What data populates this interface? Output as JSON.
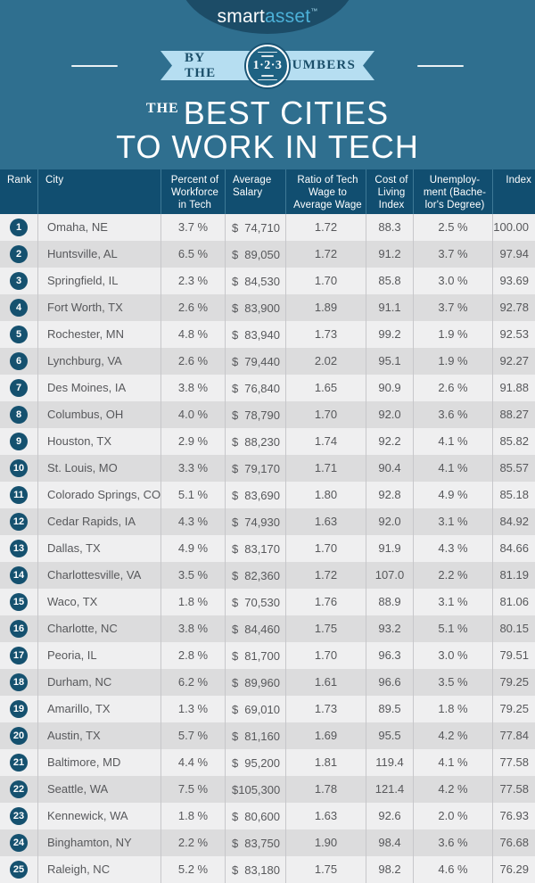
{
  "brand": {
    "smart": "smart",
    "asset": "asset",
    "trademark": "™"
  },
  "banner": {
    "left": "BY THE",
    "right": "NUMBERS",
    "circle": "1·2·3"
  },
  "title": {
    "the": "THE",
    "line1": "BEST CITIES",
    "line2": "TO WORK IN TECH"
  },
  "colors": {
    "background": "#2f6f8f",
    "logo_oval": "#1c4c67",
    "logo_asset_blue": "#4cb1d8",
    "ribbon": "#b6def1",
    "ribbon_text": "#1b4f6a",
    "header_bg": "#114e70",
    "row_odd": "#efeff0",
    "row_even": "#dcdcdd",
    "rank_badge": "#15516f",
    "body_text": "#57585b"
  },
  "table": {
    "currency": "$",
    "headers": [
      "Rank",
      "City",
      "Percent of\nWorkforce\nin Tech",
      "Average\nSalary",
      "Ratio of Tech\nWage to\nAverage Wage",
      "Cost of\nLiving\nIndex",
      "Unemploy-\nment (Bache-\nlor's Degree)",
      "Index"
    ],
    "rows": [
      {
        "rank": "1",
        "city": "Omaha, NE",
        "pct": "3.7 %",
        "salary": "74,710",
        "ratio": "1.72",
        "cost": "88.3",
        "unemp": "2.5 %",
        "index": "100.00"
      },
      {
        "rank": "2",
        "city": "Huntsville, AL",
        "pct": "6.5 %",
        "salary": "89,050",
        "ratio": "1.72",
        "cost": "91.2",
        "unemp": "3.7 %",
        "index": "97.94"
      },
      {
        "rank": "3",
        "city": "Springfield, IL",
        "pct": "2.3 %",
        "salary": "84,530",
        "ratio": "1.70",
        "cost": "85.8",
        "unemp": "3.0 %",
        "index": "93.69"
      },
      {
        "rank": "4",
        "city": "Fort Worth, TX",
        "pct": "2.6 %",
        "salary": "83,900",
        "ratio": "1.89",
        "cost": "91.1",
        "unemp": "3.7 %",
        "index": "92.78"
      },
      {
        "rank": "5",
        "city": "Rochester, MN",
        "pct": "4.8 %",
        "salary": "83,940",
        "ratio": "1.73",
        "cost": "99.2",
        "unemp": "1.9 %",
        "index": "92.53"
      },
      {
        "rank": "6",
        "city": "Lynchburg, VA",
        "pct": "2.6 %",
        "salary": "79,440",
        "ratio": "2.02",
        "cost": "95.1",
        "unemp": "1.9 %",
        "index": "92.27"
      },
      {
        "rank": "7",
        "city": "Des Moines, IA",
        "pct": "3.8 %",
        "salary": "76,840",
        "ratio": "1.65",
        "cost": "90.9",
        "unemp": "2.6 %",
        "index": "91.88"
      },
      {
        "rank": "8",
        "city": "Columbus, OH",
        "pct": "4.0 %",
        "salary": "78,790",
        "ratio": "1.70",
        "cost": "92.0",
        "unemp": "3.6 %",
        "index": "88.27"
      },
      {
        "rank": "9",
        "city": "Houston, TX",
        "pct": "2.9 %",
        "salary": "88,230",
        "ratio": "1.74",
        "cost": "92.2",
        "unemp": "4.1 %",
        "index": "85.82"
      },
      {
        "rank": "10",
        "city": "St. Louis, MO",
        "pct": "3.3 %",
        "salary": "79,170",
        "ratio": "1.71",
        "cost": "90.4",
        "unemp": "4.1 %",
        "index": "85.57"
      },
      {
        "rank": "11",
        "city": "Colorado Springs, CO",
        "pct": "5.1 %",
        "salary": "83,690",
        "ratio": "1.80",
        "cost": "92.8",
        "unemp": "4.9 %",
        "index": "85.18"
      },
      {
        "rank": "12",
        "city": "Cedar Rapids, IA",
        "pct": "4.3 %",
        "salary": "74,930",
        "ratio": "1.63",
        "cost": "92.0",
        "unemp": "3.1 %",
        "index": "84.92"
      },
      {
        "rank": "13",
        "city": "Dallas, TX",
        "pct": "4.9 %",
        "salary": "83,170",
        "ratio": "1.70",
        "cost": "91.9",
        "unemp": "4.3 %",
        "index": "84.66"
      },
      {
        "rank": "14",
        "city": "Charlottesville, VA",
        "pct": "3.5 %",
        "salary": "82,360",
        "ratio": "1.72",
        "cost": "107.0",
        "unemp": "2.2 %",
        "index": "81.19"
      },
      {
        "rank": "15",
        "city": "Waco, TX",
        "pct": "1.8 %",
        "salary": "70,530",
        "ratio": "1.76",
        "cost": "88.9",
        "unemp": "3.1 %",
        "index": "81.06"
      },
      {
        "rank": "16",
        "city": "Charlotte, NC",
        "pct": "3.8 %",
        "salary": "84,460",
        "ratio": "1.75",
        "cost": "93.2",
        "unemp": "5.1 %",
        "index": "80.15"
      },
      {
        "rank": "17",
        "city": "Peoria, IL",
        "pct": "2.8 %",
        "salary": "81,700",
        "ratio": "1.70",
        "cost": "96.3",
        "unemp": "3.0 %",
        "index": "79.51"
      },
      {
        "rank": "18",
        "city": "Durham, NC",
        "pct": "6.2 %",
        "salary": "89,960",
        "ratio": "1.61",
        "cost": "96.6",
        "unemp": "3.5 %",
        "index": "79.25"
      },
      {
        "rank": "19",
        "city": "Amarillo, TX",
        "pct": "1.3 %",
        "salary": "69,010",
        "ratio": "1.73",
        "cost": "89.5",
        "unemp": "1.8 %",
        "index": "79.25"
      },
      {
        "rank": "20",
        "city": "Austin, TX",
        "pct": "5.7 %",
        "salary": "81,160",
        "ratio": "1.69",
        "cost": "95.5",
        "unemp": "4.2 %",
        "index": "77.84"
      },
      {
        "rank": "21",
        "city": "Baltimore, MD",
        "pct": "4.4 %",
        "salary": "95,200",
        "ratio": "1.81",
        "cost": "119.4",
        "unemp": "4.1 %",
        "index": "77.58"
      },
      {
        "rank": "22",
        "city": "Seattle, WA",
        "pct": "7.5 %",
        "salary": "105,300",
        "ratio": "1.78",
        "cost": "121.4",
        "unemp": "4.2 %",
        "index": "77.58"
      },
      {
        "rank": "23",
        "city": "Kennewick, WA",
        "pct": "1.8 %",
        "salary": "80,600",
        "ratio": "1.63",
        "cost": "92.6",
        "unemp": "2.0 %",
        "index": "76.93"
      },
      {
        "rank": "24",
        "city": "Binghamton, NY",
        "pct": "2.2 %",
        "salary": "83,750",
        "ratio": "1.90",
        "cost": "98.4",
        "unemp": "3.6 %",
        "index": "76.68"
      },
      {
        "rank": "25",
        "city": "Raleigh, NC",
        "pct": "5.2 %",
        "salary": "83,180",
        "ratio": "1.75",
        "cost": "98.2",
        "unemp": "4.6 %",
        "index": "76.29"
      }
    ]
  },
  "chart_data": {
    "type": "table",
    "title": "The Best Cities to Work in Tech",
    "columns": [
      "rank",
      "city",
      "percent_of_workforce_in_tech",
      "average_salary_usd",
      "ratio_of_tech_wage_to_average_wage",
      "cost_of_living_index",
      "unemployment_bachelors_degree_pct",
      "index"
    ],
    "rows": [
      [
        1,
        "Omaha, NE",
        3.7,
        74710,
        1.72,
        88.3,
        2.5,
        100.0
      ],
      [
        2,
        "Huntsville, AL",
        6.5,
        89050,
        1.72,
        91.2,
        3.7,
        97.94
      ],
      [
        3,
        "Springfield, IL",
        2.3,
        84530,
        1.7,
        85.8,
        3.0,
        93.69
      ],
      [
        4,
        "Fort Worth, TX",
        2.6,
        83900,
        1.89,
        91.1,
        3.7,
        92.78
      ],
      [
        5,
        "Rochester, MN",
        4.8,
        83940,
        1.73,
        99.2,
        1.9,
        92.53
      ],
      [
        6,
        "Lynchburg, VA",
        2.6,
        79440,
        2.02,
        95.1,
        1.9,
        92.27
      ],
      [
        7,
        "Des Moines, IA",
        3.8,
        76840,
        1.65,
        90.9,
        2.6,
        91.88
      ],
      [
        8,
        "Columbus, OH",
        4.0,
        78790,
        1.7,
        92.0,
        3.6,
        88.27
      ],
      [
        9,
        "Houston, TX",
        2.9,
        88230,
        1.74,
        92.2,
        4.1,
        85.82
      ],
      [
        10,
        "St. Louis, MO",
        3.3,
        79170,
        1.71,
        90.4,
        4.1,
        85.57
      ],
      [
        11,
        "Colorado Springs, CO",
        5.1,
        83690,
        1.8,
        92.8,
        4.9,
        85.18
      ],
      [
        12,
        "Cedar Rapids, IA",
        4.3,
        74930,
        1.63,
        92.0,
        3.1,
        84.92
      ],
      [
        13,
        "Dallas, TX",
        4.9,
        83170,
        1.7,
        91.9,
        4.3,
        84.66
      ],
      [
        14,
        "Charlottesville, VA",
        3.5,
        82360,
        1.72,
        107.0,
        2.2,
        81.19
      ],
      [
        15,
        "Waco, TX",
        1.8,
        70530,
        1.76,
        88.9,
        3.1,
        81.06
      ],
      [
        16,
        "Charlotte, NC",
        3.8,
        84460,
        1.75,
        93.2,
        5.1,
        80.15
      ],
      [
        17,
        "Peoria, IL",
        2.8,
        81700,
        1.7,
        96.3,
        3.0,
        79.51
      ],
      [
        18,
        "Durham, NC",
        6.2,
        89960,
        1.61,
        96.6,
        3.5,
        79.25
      ],
      [
        19,
        "Amarillo, TX",
        1.3,
        69010,
        1.73,
        89.5,
        1.8,
        79.25
      ],
      [
        20,
        "Austin, TX",
        5.7,
        81160,
        1.69,
        95.5,
        4.2,
        77.84
      ],
      [
        21,
        "Baltimore, MD",
        4.4,
        95200,
        1.81,
        119.4,
        4.1,
        77.58
      ],
      [
        22,
        "Seattle, WA",
        7.5,
        105300,
        1.78,
        121.4,
        4.2,
        77.58
      ],
      [
        23,
        "Kennewick, WA",
        1.8,
        80600,
        1.63,
        92.6,
        2.0,
        76.93
      ],
      [
        24,
        "Binghamton, NY",
        2.2,
        83750,
        1.9,
        98.4,
        3.6,
        76.68
      ],
      [
        25,
        "Raleigh, NC",
        5.2,
        83180,
        1.75,
        98.2,
        4.6,
        76.29
      ]
    ]
  }
}
